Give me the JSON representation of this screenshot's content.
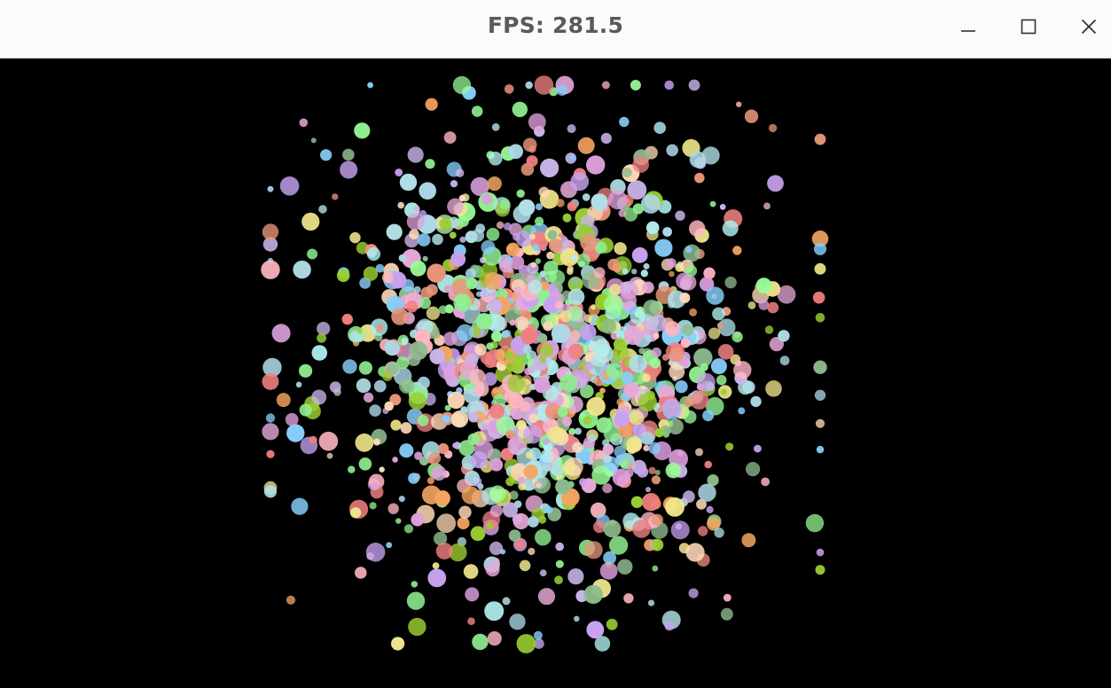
{
  "window": {
    "title": "FPS: 281.5",
    "background_color": "#000000",
    "titlebar_color": "#fbfbfb",
    "title_color": "#5a5a5a"
  },
  "controls": {
    "minimize_icon": "minimize-icon",
    "maximize_icon": "maximize-icon",
    "close_icon": "close-icon"
  },
  "scene": {
    "description_type": "particle-field",
    "palette": [
      "#f08080",
      "#90ee90",
      "#add8e6",
      "#dda0dd",
      "#f0e68c",
      "#87cefa",
      "#ffb6c1",
      "#98fb98",
      "#e6a8d7",
      "#b0e0e6",
      "#c8a2f0",
      "#ffdab9",
      "#9acd32",
      "#e9967a",
      "#afeeee",
      "#f4a460",
      "#c9b5e8",
      "#8fbc8f"
    ]
  }
}
